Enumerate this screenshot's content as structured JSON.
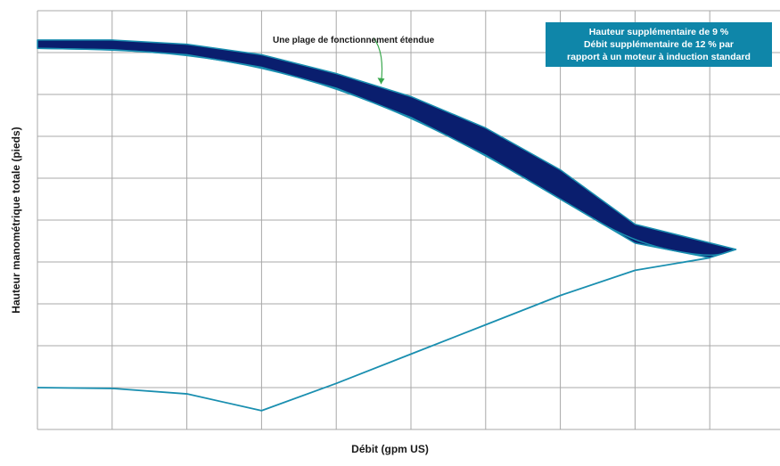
{
  "chart_data": {
    "type": "line",
    "title": "",
    "xlabel": "Débit (gpm US)",
    "ylabel": "Hauteur manométrique totale (pieds)",
    "grid": true,
    "xlim": [
      0,
      10
    ],
    "ylim": [
      0,
      10
    ],
    "series": [
      {
        "values_upper": [
          [
            0,
            9.3
          ],
          [
            1,
            9.3
          ],
          [
            2,
            9.2
          ],
          [
            3,
            8.95
          ],
          [
            4,
            8.5
          ],
          [
            5,
            7.95
          ],
          [
            6,
            7.2
          ],
          [
            7,
            6.2
          ],
          [
            8,
            4.9
          ],
          [
            9.35,
            4.3
          ]
        ],
        "values_lower": [
          [
            0,
            9.1
          ],
          [
            1,
            9.07
          ],
          [
            2,
            8.95
          ],
          [
            3,
            8.65
          ],
          [
            4,
            8.15
          ],
          [
            5,
            7.45
          ],
          [
            6,
            6.55
          ],
          [
            7,
            5.5
          ],
          [
            8,
            4.45
          ],
          [
            9,
            4.1
          ],
          [
            9.35,
            4.3
          ]
        ]
      },
      {
        "values": [
          [
            0,
            1.0
          ],
          [
            1,
            0.98
          ],
          [
            2,
            0.85
          ],
          [
            3,
            0.45
          ],
          [
            4,
            1.1
          ],
          [
            5,
            1.8
          ],
          [
            6,
            2.5
          ],
          [
            7,
            3.2
          ],
          [
            8,
            3.8
          ],
          [
            9,
            4.1
          ]
        ]
      }
    ],
    "annotations": {
      "band_label": "Une plage de fonctionnement étendue",
      "box_lines": [
        "Hauteur supplémentaire de 9 %",
        "Débit supplémentaire de 12 % par",
        "rapport à un moteur à induction standard"
      ]
    },
    "colors": {
      "band_fill": "#0a1e6e",
      "line": "#1a8fb0",
      "grid": "#a8a8a8",
      "box_fill": "#0f86a9",
      "arrow": "#3aa84e"
    }
  }
}
